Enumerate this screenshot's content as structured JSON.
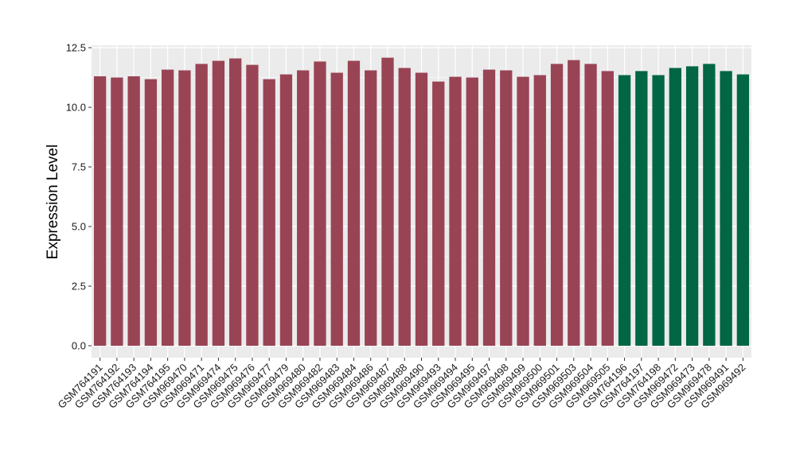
{
  "chart_data": {
    "type": "bar",
    "ylabel": "Expression Level",
    "xlabel": "",
    "ylim": [
      -0.5,
      12.6
    ],
    "yticks": [
      0.0,
      2.5,
      5.0,
      7.5,
      10.0,
      12.5
    ],
    "ytick_labels": [
      "0.0",
      "2.5",
      "5.0",
      "7.5",
      "10.0",
      "12.5"
    ],
    "grid": true,
    "legend": "none",
    "colors": {
      "group1": "#994455",
      "group2": "#006644",
      "panel_bg": "#ebebeb",
      "grid": "#ffffff"
    },
    "categories": [
      "GSM764191",
      "GSM764192",
      "GSM764193",
      "GSM764194",
      "GSM764195",
      "GSM969470",
      "GSM969471",
      "GSM969474",
      "GSM969475",
      "GSM969476",
      "GSM969477",
      "GSM969479",
      "GSM969480",
      "GSM969482",
      "GSM969483",
      "GSM969484",
      "GSM969486",
      "GSM969487",
      "GSM969488",
      "GSM969490",
      "GSM969493",
      "GSM969494",
      "GSM969495",
      "GSM969497",
      "GSM969498",
      "GSM969499",
      "GSM969500",
      "GSM969501",
      "GSM969503",
      "GSM969504",
      "GSM969505",
      "GSM764196",
      "GSM764197",
      "GSM764198",
      "GSM969472",
      "GSM969473",
      "GSM969478",
      "GSM969491",
      "GSM969492"
    ],
    "values": [
      11.3,
      11.25,
      11.3,
      11.18,
      11.58,
      11.55,
      11.82,
      11.95,
      12.05,
      11.78,
      11.18,
      11.38,
      11.55,
      11.92,
      11.45,
      11.95,
      11.55,
      12.08,
      11.65,
      11.45,
      11.08,
      11.28,
      11.25,
      11.58,
      11.55,
      11.28,
      11.35,
      11.82,
      11.98,
      11.82,
      11.52,
      11.35,
      11.52,
      11.35,
      11.65,
      11.72,
      11.82,
      11.52,
      11.38
    ],
    "groups": [
      1,
      1,
      1,
      1,
      1,
      1,
      1,
      1,
      1,
      1,
      1,
      1,
      1,
      1,
      1,
      1,
      1,
      1,
      1,
      1,
      1,
      1,
      1,
      1,
      1,
      1,
      1,
      1,
      1,
      1,
      1,
      2,
      2,
      2,
      2,
      2,
      2,
      2,
      2
    ]
  }
}
